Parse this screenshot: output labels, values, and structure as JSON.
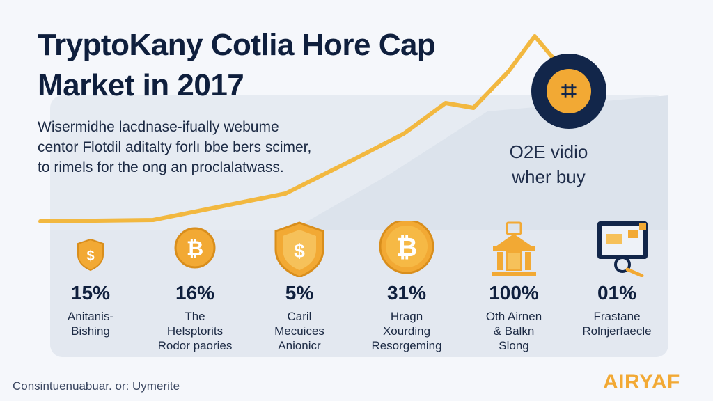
{
  "title_line1": "TryptoKany Cotlia Hore Cap",
  "title_line2": "Market in 2017",
  "description": [
    "Wisermidhe lacdnase-ifually webume",
    "centor Flotdil aditalty forlı bbe bers scimer,",
    "to rimels for the ong an proclalatwass."
  ],
  "right_label_line1": "O2E vidio",
  "right_label_line2": "wher buy",
  "stats": [
    {
      "value": "15%",
      "label": "Anitanis-\nBishing",
      "icon": "small-shield-dollar-icon"
    },
    {
      "value": "16%",
      "label": "The\nHelsptorits\nRodor paories",
      "icon": "bitcoin-coin-icon"
    },
    {
      "value": "5%",
      "label": "Caril\nMecuices\nAnionicr",
      "icon": "shield-dollar-icon"
    },
    {
      "value": "31%",
      "label": "Hragn\nXourding\nResorgeming",
      "icon": "large-bitcoin-coin-icon"
    },
    {
      "value": "100%",
      "label": "Oth Airnen\n& Balkn\nSlong",
      "icon": "bank-building-icon"
    },
    {
      "value": "01%",
      "label": "Frastane\nRolnjerfaecle",
      "icon": "laptop-magnifier-icon"
    }
  ],
  "footer": "Consintuenuabuar. or: Uymerite",
  "brand_main": "AIRY",
  "brand_suffix": "AF",
  "colors": {
    "accent": "#f2a934",
    "navy": "#0f1f3d",
    "panel": "#e6ebf2"
  }
}
